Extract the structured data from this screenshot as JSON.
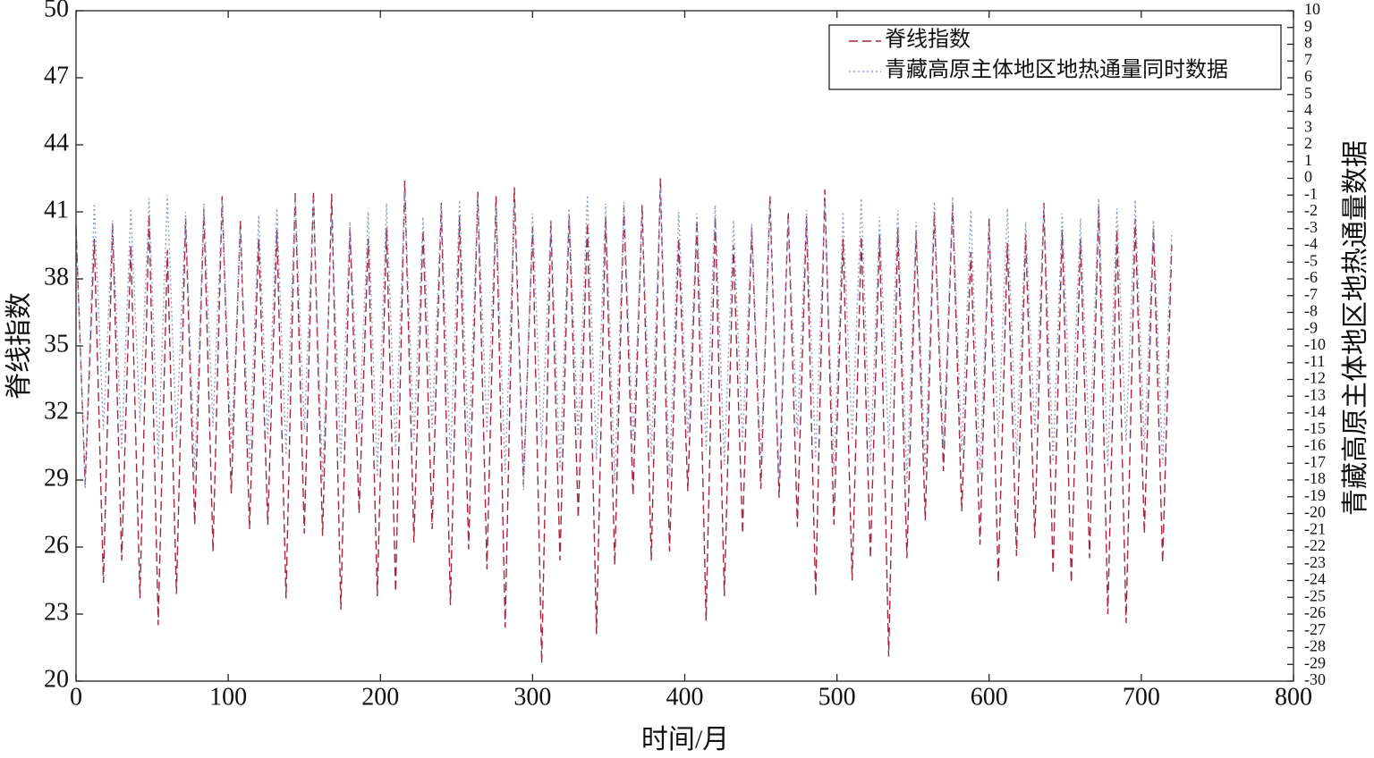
{
  "chart_data": {
    "type": "line",
    "x_label": "时间/月",
    "y_label": "脊线指数",
    "y2_label": "青藏高原主体地区地热通量数据",
    "x": [
      0,
      6,
      12,
      18,
      24,
      30,
      36,
      42,
      48,
      54,
      60,
      66,
      72,
      78,
      84,
      90,
      96,
      102,
      108,
      114,
      120,
      126,
      132,
      138,
      144,
      150,
      156,
      162,
      168,
      174,
      180,
      186,
      192,
      198,
      204,
      210,
      216,
      222,
      228,
      234,
      240,
      246,
      252,
      258,
      264,
      270,
      276,
      282,
      288,
      294,
      300,
      306,
      312,
      318,
      324,
      330,
      336,
      342,
      348,
      354,
      360,
      366,
      372,
      378,
      384,
      390,
      396,
      402,
      408,
      414,
      420,
      426,
      432,
      438,
      444,
      450,
      456,
      462,
      468,
      474,
      480,
      486,
      492,
      498,
      504,
      510,
      516,
      522,
      528,
      534,
      540,
      546,
      552,
      558,
      564,
      570,
      576,
      582,
      588,
      594,
      600,
      606,
      612,
      618,
      624,
      630,
      636,
      642,
      648,
      654,
      660,
      666,
      672,
      678,
      684,
      690,
      696,
      702,
      708,
      714,
      720
    ],
    "series": [
      {
        "name": "脊线指数",
        "color": "#a3283f",
        "dash": "dashed",
        "axis": "y",
        "values": [
          40.3,
          28.8,
          39.8,
          24.4,
          40.5,
          25.4,
          39.5,
          23.7,
          40.9,
          22.5,
          39.3,
          23.9,
          40.7,
          27.0,
          41.1,
          25.8,
          41.7,
          28.4,
          40.6,
          26.8,
          39.8,
          27.0,
          40.2,
          23.7,
          41.9,
          26.6,
          41.9,
          26.5,
          41.8,
          23.2,
          40.3,
          27.5,
          39.8,
          23.8,
          40.3,
          24.0,
          42.4,
          26.2,
          40.2,
          26.8,
          41.4,
          23.4,
          40.8,
          25.9,
          41.9,
          25.0,
          41.7,
          22.4,
          42.1,
          28.8,
          40.3,
          20.8,
          40.6,
          25.4,
          40.9,
          27.3,
          40.5,
          22.1,
          40.8,
          25.2,
          41.2,
          28.3,
          41.3,
          25.4,
          42.5,
          25.8,
          39.8,
          28.5,
          40.6,
          22.7,
          40.8,
          23.8,
          39.5,
          26.6,
          40.3,
          28.6,
          41.7,
          28.2,
          41.0,
          26.9,
          40.8,
          23.8,
          42.0,
          27.0,
          39.8,
          24.5,
          39.9,
          25.5,
          40.0,
          21.1,
          40.3,
          25.5,
          40.1,
          27.2,
          41.0,
          29.4,
          41.3,
          27.6,
          39.2,
          26.1,
          40.7,
          24.4,
          39.6,
          25.6,
          40.0,
          26.4,
          41.4,
          24.8,
          40.2,
          24.4,
          39.8,
          25.5,
          41.3,
          23.0,
          40.2,
          22.6,
          40.7,
          26.6,
          40.3,
          25.3,
          39.5
        ]
      },
      {
        "name": "青藏高原主体地区地热通量同时数据",
        "color": "#8d9fcf",
        "dash": "dotted",
        "axis": "y2",
        "values": [
          -2.8,
          -18.5,
          -1.5,
          -15.0,
          -2.5,
          -16.2,
          -1.8,
          -14.5,
          -1.2,
          -16.8,
          -1.0,
          -15.5,
          -2.0,
          -17.5,
          -1.5,
          -14.8,
          -1.3,
          -16.0,
          -3.0,
          -17.2,
          -2.2,
          -15.6,
          -1.8,
          -16.5,
          -1.0,
          -15.0,
          -1.2,
          -18.0,
          -2.4,
          -16.9,
          -2.6,
          -15.3,
          -2.0,
          -17.8,
          -1.5,
          -16.2,
          -0.8,
          -15.8,
          -2.3,
          -14.9,
          -1.6,
          -17.0,
          -1.3,
          -16.4,
          -1.1,
          -15.2,
          -1.7,
          -17.6,
          -1.4,
          -18.6,
          -2.1,
          -16.0,
          -2.5,
          -17.3,
          -1.8,
          -15.5,
          -1.0,
          -16.8,
          -1.5,
          -18.2,
          -1.4,
          -15.7,
          -2.2,
          -16.6,
          -0.6,
          -17.9,
          -2.0,
          -15.4,
          -2.1,
          -16.2,
          -1.6,
          -17.1,
          -2.5,
          -15.8,
          -2.7,
          -16.9,
          -1.5,
          -18.0,
          -2.4,
          -15.3,
          -1.9,
          -16.7,
          -1.3,
          -17.4,
          -2.0,
          -15.6,
          -1.2,
          -17.0,
          -2.3,
          -16.1,
          -1.9,
          -18.1,
          -2.6,
          -17.5,
          -1.4,
          -15.9,
          -1.1,
          -16.3,
          -1.9,
          -17.7,
          -2.8,
          -15.5,
          -1.8,
          -16.6,
          -2.6,
          -15.2,
          -1.6,
          -16.9,
          -2.1,
          -15.8,
          -2.4,
          -16.4,
          -1.2,
          -17.2,
          -1.8,
          -15.7,
          -1.3,
          -16.2,
          -2.5,
          -17.0,
          -3.2
        ]
      }
    ],
    "xlim": [
      0,
      800
    ],
    "xticks": [
      0,
      100,
      200,
      300,
      400,
      500,
      600,
      700,
      800
    ],
    "ylim": [
      20,
      50
    ],
    "yticks": [
      20,
      23,
      26,
      29,
      32,
      35,
      38,
      41,
      44,
      47,
      50
    ],
    "y2lim": [
      -30,
      10
    ],
    "y2ticks": [
      -30,
      -29,
      -28,
      -27,
      -26,
      -25,
      -24,
      -23,
      -22,
      -21,
      -20,
      -19,
      -18,
      -17,
      -16,
      -15,
      -14,
      -13,
      -12,
      -11,
      -10,
      -9,
      -8,
      -7,
      -6,
      -5,
      -4,
      -3,
      -2,
      -1,
      0,
      1,
      2,
      3,
      4,
      5,
      6,
      7,
      8,
      9,
      10
    ],
    "legend": "upper right",
    "grid": false
  }
}
